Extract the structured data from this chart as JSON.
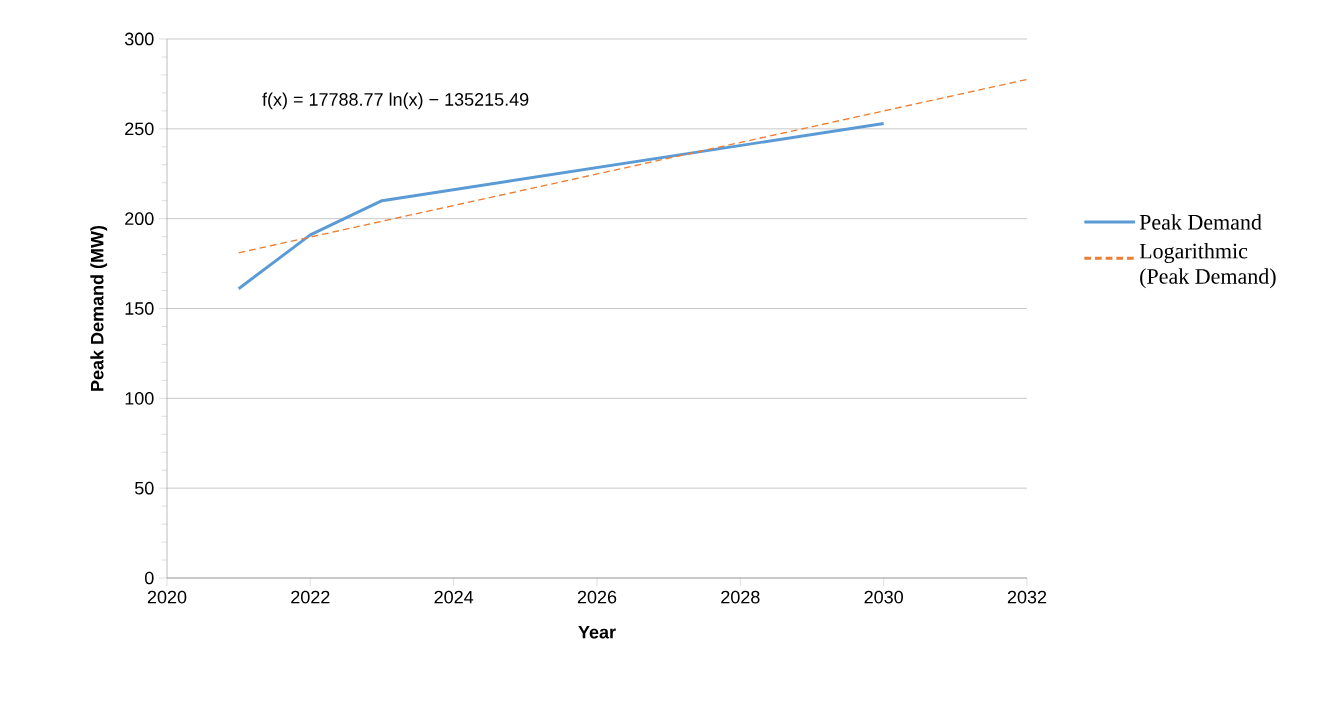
{
  "chart_data": {
    "type": "line",
    "xlabel": "Year",
    "ylabel": "Peak Demand (MW)",
    "xlim": [
      2020,
      2032
    ],
    "xticks": [
      2020,
      2022,
      2024,
      2026,
      2028,
      2030,
      2032
    ],
    "ylim": [
      0,
      300
    ],
    "yticks": [
      0,
      50,
      100,
      150,
      200,
      250,
      300
    ],
    "grid": "y",
    "legend": "right",
    "marker": "none",
    "annotations": [
      "f(x) = 17788.77 ln(x) − 135215.49"
    ],
    "series": [
      {
        "name": "Peak Demand",
        "color": "#5b9bd5",
        "x": [
          2021,
          2022,
          2023,
          2030
        ],
        "values": [
          161,
          191,
          210,
          253
        ]
      },
      {
        "name": "Logarithmic (Peak Demand)",
        "color": "#ed7d31",
        "line_style": "dashed",
        "x": [
          2021,
          2032
        ],
        "values": [
          181,
          277.5
        ]
      }
    ]
  }
}
